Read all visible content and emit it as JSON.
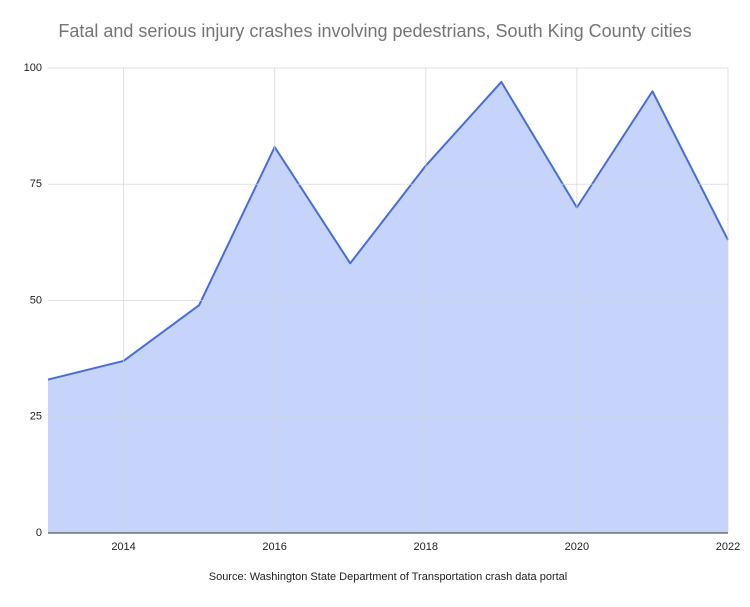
{
  "chart_data": {
    "type": "area",
    "title": "Fatal and serious injury crashes involving pedestrians, South King County cities",
    "source": "Source: Washington State Department of Transportation crash data portal",
    "x": [
      2013,
      2014,
      2015,
      2016,
      2017,
      2018,
      2019,
      2020,
      2021,
      2022
    ],
    "series": [
      {
        "color": "#4a6cd6",
        "fill": "#c6d4fc",
        "values": [
          33,
          37,
          49,
          83,
          58,
          79,
          97,
          70,
          95,
          63
        ]
      }
    ],
    "xlim": [
      2013,
      2022
    ],
    "xticks": [
      2014,
      2016,
      2018,
      2020,
      2022
    ],
    "ylim": [
      0,
      100
    ],
    "yticks": [
      0,
      25,
      50,
      75,
      100
    ],
    "grid": true
  }
}
